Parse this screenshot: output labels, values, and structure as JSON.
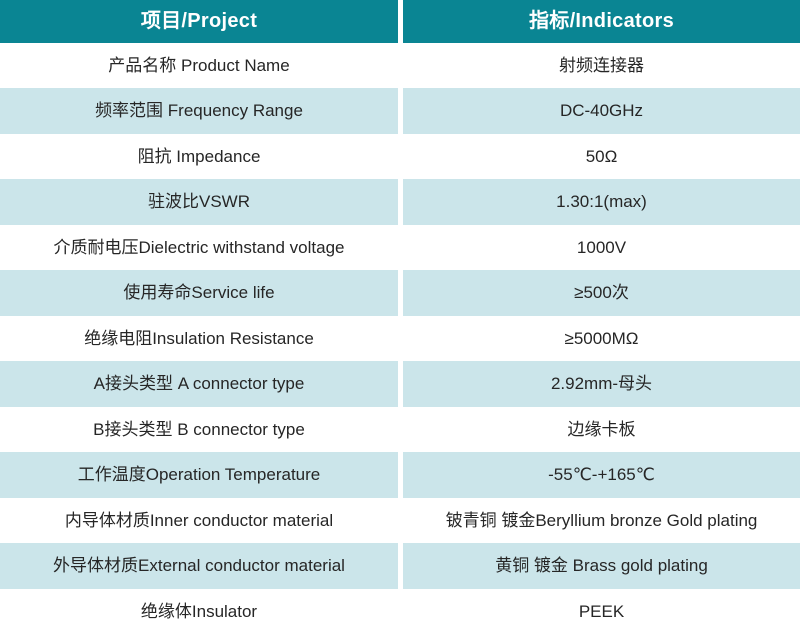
{
  "colors": {
    "header_bg": "#0a8593",
    "header_text": "#ffffff",
    "row_bg": "#ffffff",
    "row_alt_bg": "#cbe5ea",
    "cell_text": "#262626",
    "divider": "#ffffff"
  },
  "table": {
    "header": {
      "project": "项目/Project",
      "indicators": "指标/Indicators"
    },
    "rows": [
      {
        "project": "产品名称 Product Name",
        "indicator": "射频连接器"
      },
      {
        "project": "频率范围 Frequency Range",
        "indicator": "DC-40GHz"
      },
      {
        "project": "阻抗 Impedance",
        "indicator": "50Ω"
      },
      {
        "project": "驻波比VSWR",
        "indicator": "1.30:1(max)"
      },
      {
        "project": "介质耐电压Dielectric withstand voltage",
        "indicator": "1000V"
      },
      {
        "project": "使用寿命Service life",
        "indicator": "≥500次"
      },
      {
        "project": "绝缘电阻Insulation Resistance",
        "indicator": "≥5000MΩ"
      },
      {
        "project": "A接头类型 A connector type",
        "indicator": "2.92mm-母头"
      },
      {
        "project": "B接头类型 B connector type",
        "indicator": "边缘卡板"
      },
      {
        "project": "工作温度Operation Temperature",
        "indicator": "-55℃-+165℃"
      },
      {
        "project": "内导体材质Inner conductor material",
        "indicator": "铍青铜 镀金Beryllium bronze Gold plating"
      },
      {
        "project": "外导体材质External conductor material",
        "indicator": "黄铜 镀金 Brass gold plating"
      },
      {
        "project": "绝缘体Insulator",
        "indicator": "PEEK"
      }
    ]
  }
}
